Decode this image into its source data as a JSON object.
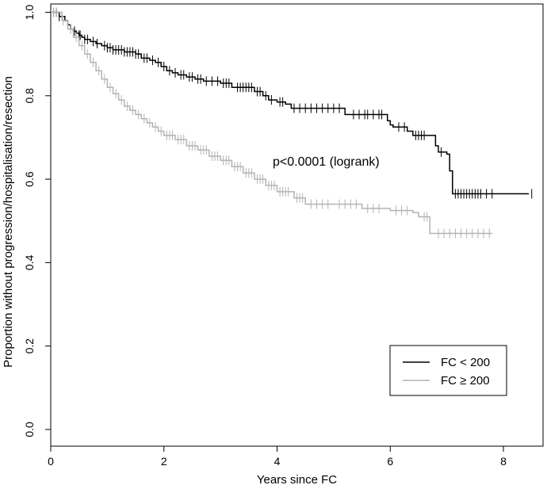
{
  "chart_data": {
    "type": "line",
    "xlabel": "Years since FC",
    "ylabel": "Proportion without progression/hospitalisation/resection",
    "xlim": [
      0,
      8.7
    ],
    "ylim": [
      -0.04,
      1.02
    ],
    "x_ticks": [
      0,
      2,
      4,
      6,
      8
    ],
    "x_tick_labels": [
      "0",
      "2",
      "4",
      "6",
      "8"
    ],
    "y_ticks": [
      0.0,
      0.2,
      0.4,
      0.6,
      0.8,
      1.0
    ],
    "y_tick_labels": [
      "0.0",
      "0.2",
      "0.4",
      "0.6",
      "0.8",
      "1.0"
    ],
    "annotation": "p<0.0001 (logrank)",
    "legend_position": "bottom-right",
    "series": [
      {
        "name": "FC < 200",
        "color": "#000000",
        "x": [
          0,
          0.15,
          0.25,
          0.3,
          0.35,
          0.4,
          0.45,
          0.5,
          0.55,
          0.6,
          0.7,
          0.8,
          0.9,
          1.0,
          1.1,
          1.3,
          1.5,
          1.6,
          1.75,
          1.85,
          1.95,
          2.05,
          2.15,
          2.25,
          2.4,
          2.55,
          2.7,
          3.0,
          3.2,
          3.6,
          3.75,
          3.85,
          4.0,
          4.15,
          4.25,
          5.2,
          5.95,
          6.0,
          6.05,
          6.3,
          6.4,
          6.8,
          6.85,
          7.0,
          7.05,
          7.1,
          8.45
        ],
        "y": [
          1.0,
          0.99,
          0.98,
          0.97,
          0.96,
          0.955,
          0.95,
          0.945,
          0.94,
          0.935,
          0.93,
          0.925,
          0.92,
          0.915,
          0.91,
          0.905,
          0.9,
          0.89,
          0.885,
          0.88,
          0.87,
          0.86,
          0.855,
          0.85,
          0.845,
          0.84,
          0.835,
          0.83,
          0.82,
          0.81,
          0.8,
          0.79,
          0.785,
          0.78,
          0.77,
          0.755,
          0.74,
          0.73,
          0.725,
          0.715,
          0.705,
          0.68,
          0.665,
          0.66,
          0.62,
          0.565,
          0.565
        ],
        "censor_x": [
          0.05,
          0.1,
          0.15,
          0.35,
          0.42,
          0.5,
          0.52,
          0.6,
          0.65,
          0.75,
          0.82,
          0.95,
          1.0,
          1.05,
          1.1,
          1.15,
          1.2,
          1.25,
          1.3,
          1.35,
          1.4,
          1.45,
          1.5,
          1.55,
          1.65,
          1.7,
          1.8,
          1.9,
          2.0,
          2.1,
          2.2,
          2.3,
          2.35,
          2.45,
          2.5,
          2.6,
          2.65,
          2.75,
          2.85,
          2.95,
          3.05,
          3.1,
          3.15,
          3.3,
          3.35,
          3.4,
          3.45,
          3.5,
          3.55,
          3.65,
          3.7,
          3.8,
          3.9,
          4.05,
          4.1,
          4.3,
          4.4,
          4.5,
          4.6,
          4.7,
          4.8,
          4.9,
          5.0,
          5.1,
          5.35,
          5.45,
          5.55,
          5.6,
          5.7,
          5.8,
          5.85,
          6.15,
          6.25,
          6.45,
          6.5,
          6.55,
          6.6,
          6.9,
          7.15,
          7.2,
          7.25,
          7.3,
          7.35,
          7.4,
          7.45,
          7.5,
          7.55,
          7.6,
          7.7,
          7.8,
          8.5
        ]
      },
      {
        "name": "FC ≥ 200",
        "color": "#b3b3b3",
        "x": [
          0,
          0.2,
          0.3,
          0.4,
          0.5,
          0.6,
          0.7,
          0.8,
          0.9,
          1.0,
          1.1,
          1.2,
          1.3,
          1.4,
          1.5,
          1.6,
          1.7,
          1.8,
          1.9,
          2.0,
          2.2,
          2.4,
          2.6,
          2.8,
          3.0,
          3.2,
          3.4,
          3.6,
          3.8,
          4.0,
          4.3,
          4.5,
          5.0,
          5.5,
          5.9,
          6.0,
          6.4,
          6.5,
          6.7,
          7.8
        ],
        "y": [
          1.0,
          0.98,
          0.96,
          0.94,
          0.92,
          0.9,
          0.88,
          0.86,
          0.84,
          0.82,
          0.805,
          0.79,
          0.775,
          0.765,
          0.755,
          0.745,
          0.735,
          0.725,
          0.715,
          0.705,
          0.695,
          0.68,
          0.67,
          0.655,
          0.645,
          0.63,
          0.615,
          0.6,
          0.585,
          0.57,
          0.555,
          0.54,
          0.54,
          0.53,
          0.53,
          0.525,
          0.52,
          0.51,
          0.47,
          0.47
        ],
        "censor_x": [
          0.05,
          0.1,
          0.22,
          0.35,
          0.45,
          0.55,
          0.65,
          0.75,
          0.85,
          0.95,
          1.05,
          1.15,
          1.25,
          1.35,
          1.45,
          1.55,
          1.65,
          1.75,
          1.85,
          1.95,
          2.05,
          2.1,
          2.15,
          2.25,
          2.3,
          2.35,
          2.45,
          2.5,
          2.55,
          2.65,
          2.7,
          2.75,
          2.85,
          2.9,
          2.95,
          3.05,
          3.1,
          3.15,
          3.25,
          3.3,
          3.35,
          3.45,
          3.5,
          3.55,
          3.65,
          3.7,
          3.75,
          3.85,
          3.9,
          3.95,
          4.05,
          4.1,
          4.15,
          4.2,
          4.35,
          4.4,
          4.45,
          4.6,
          4.7,
          4.8,
          4.9,
          5.1,
          5.2,
          5.3,
          5.4,
          5.6,
          5.7,
          5.8,
          6.1,
          6.2,
          6.3,
          6.6,
          6.65,
          6.85,
          6.95,
          7.05,
          7.15,
          7.25,
          7.35,
          7.45,
          7.55,
          7.65,
          7.75
        ]
      }
    ]
  }
}
